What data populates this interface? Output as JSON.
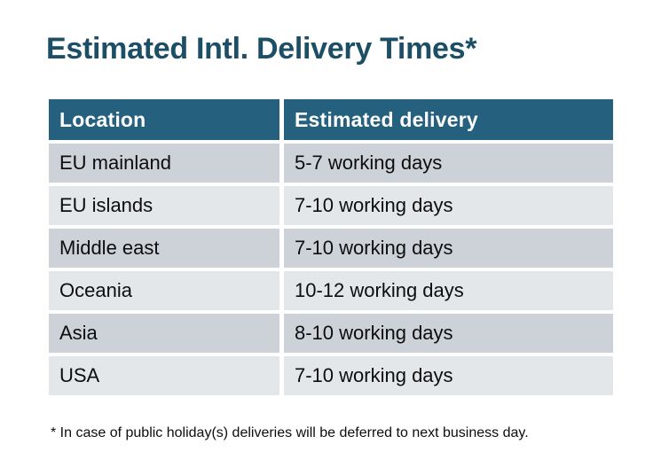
{
  "page": {
    "title": "Estimated Intl. Delivery Times*",
    "footnote": "* In case of public holiday(s) deliveries will be deferred to next business day."
  },
  "table": {
    "headers": {
      "location": "Location",
      "delivery": "Estimated delivery"
    },
    "rows": [
      {
        "location": "EU mainland",
        "delivery": "5-7 working days"
      },
      {
        "location": "EU islands",
        "delivery": "7-10 working days"
      },
      {
        "location": "Middle east",
        "delivery": "7-10 working days"
      },
      {
        "location": "Oceania",
        "delivery": "10-12 working days"
      },
      {
        "location": "Asia",
        "delivery": "8-10 working days"
      },
      {
        "location": "USA",
        "delivery": "7-10 working days"
      }
    ]
  },
  "colors": {
    "title_text": "#1C4F66",
    "header_bg": "#25617F",
    "header_text": "#FFFFFF",
    "row_alt_dark": "#CDD1D8",
    "row_alt_light": "#E4E7EA",
    "body_text": "#0D0D0D",
    "page_bg": "#FFFFFF"
  }
}
